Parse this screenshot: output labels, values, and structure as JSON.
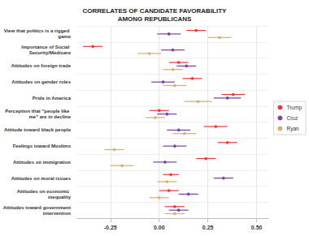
{
  "chart_data": {
    "type": "dot",
    "orientation": "horizontal",
    "title": "CORRELATES OF CANDIDATE FAVORABILITY\nAMONG REPUBLICANS",
    "categories": [
      "View that politics is a rigged game",
      "Importance of Social Security/Medicare",
      "Attitudes on foreign trade",
      "Attitudes on gender roles",
      "Pride in America",
      "Perception that \"people like me\" are in decline",
      "Attitude toward black people",
      "Feelings toward Muslims",
      "Attitudes on immigration",
      "Attitudes on moral issues",
      "Attitudes on economic inequality",
      "Attitudes toward government intervention"
    ],
    "series": [
      {
        "name": "Trump",
        "color": "#e8383d",
        "values": [
          0.19,
          -0.34,
          0.1,
          0.17,
          0.38,
          0.0,
          0.29,
          0.35,
          0.24,
          0.06,
          0.05,
          0.08
        ],
        "errors": [
          0.05,
          0.05,
          0.05,
          0.05,
          0.06,
          0.05,
          0.06,
          0.05,
          0.05,
          0.04,
          0.05,
          0.05
        ]
      },
      {
        "name": "Cruz",
        "color": "#7b3fa6",
        "values": [
          0.05,
          0.07,
          0.14,
          0.02,
          0.35,
          0.04,
          0.1,
          0.08,
          0.03,
          0.33,
          0.15,
          0.1
        ],
        "errors": [
          0.06,
          0.06,
          0.05,
          0.06,
          0.07,
          0.05,
          0.06,
          0.06,
          0.06,
          0.05,
          0.05,
          0.05
        ]
      },
      {
        "name": "Ryan",
        "color": "#d4b06a",
        "values": [
          0.31,
          -0.05,
          0.07,
          0.08,
          0.2,
          -0.02,
          0.13,
          -0.23,
          -0.19,
          0.04,
          0.0,
          0.08
        ],
        "errors": [
          0.06,
          0.06,
          0.05,
          0.06,
          0.07,
          0.05,
          0.06,
          0.05,
          0.06,
          0.05,
          0.05,
          0.05
        ]
      }
    ],
    "xlim": [
      -0.42,
      0.56
    ],
    "xticks": [
      -0.25,
      {
        "value": 0,
        "label": "0.00"
      },
      0.25,
      {
        "value": 0.5,
        "label": "0.50"
      }
    ],
    "grid": true,
    "legend": "right"
  }
}
